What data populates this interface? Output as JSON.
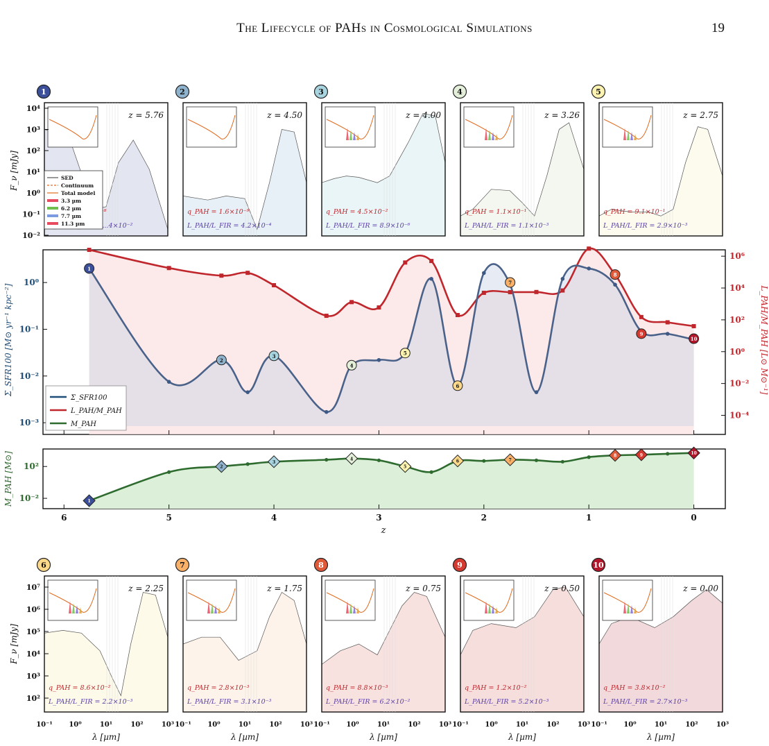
{
  "header": {
    "title": "The Lifecycle of PAHs in Cosmological Simulations",
    "page_number": "19"
  },
  "legend_sed": [
    "SED",
    "Continuum",
    "Total model",
    "3.3 µm",
    "6.2 µm",
    "7.7 µm",
    "11.3 µm"
  ],
  "legend_mid": [
    "Σ_SFR100",
    "L_PAH/M_PAH",
    "M_PAH"
  ],
  "colors": {
    "sfr": "#1f4e79",
    "lpah": "#c0272d",
    "mpah": "#2e6b2e",
    "markers": [
      "#3b4f9b",
      "#8fb3cc",
      "#a8d4e0",
      "#e4efd9",
      "#fdf3b0",
      "#fcd98a",
      "#f9b068",
      "#e05a3a",
      "#d43a2f",
      "#b3152a"
    ]
  },
  "top_panels": [
    {
      "id": "1",
      "z": "z = 5.76",
      "q": "q_PAH = ...×10⁻⁸",
      "l": "L_PAH/L_FIR = ...4×10⁻²"
    },
    {
      "id": "2",
      "z": "z = 4.50",
      "q": "q_PAH = 1.6×10⁻⁹",
      "l": "L_PAH/L_FIR = 4.2×10⁻⁴"
    },
    {
      "id": "3",
      "z": "z = 4.00",
      "q": "q_PAH = 4.5×10⁻²",
      "l": "L_PAH/L_FIR = 8.9×10⁻⁶"
    },
    {
      "id": "4",
      "z": "z = 3.26",
      "q": "q_PAH = 1.1×10⁻¹",
      "l": "L_PAH/L_FIR = 1.1×10⁻³"
    },
    {
      "id": "5",
      "z": "z = 2.75",
      "q": "q_PAH = 9.1×10⁻¹",
      "l": "L_PAH/L_FIR = 2.9×10⁻³"
    }
  ],
  "bottom_panels": [
    {
      "id": "6",
      "z": "z = 2.25",
      "q": "q_PAH = 8.6×10⁻²",
      "l": "L_PAH/L_FIR = 2.2×10⁻³"
    },
    {
      "id": "7",
      "z": "z = 1.75",
      "q": "q_PAH = 2.8×10⁻³",
      "l": "L_PAH/L_FIR = 3.1×10⁻³"
    },
    {
      "id": "8",
      "z": "z = 0.75",
      "q": "q_PAH = 8.8×10⁻³",
      "l": "L_PAH/L_FIR = 6.2×10⁻²"
    },
    {
      "id": "9",
      "z": "z = 0.50",
      "q": "q_PAH = 1.2×10⁻²",
      "l": "L_PAH/L_FIR = 5.2×10⁻³"
    },
    {
      "id": "10",
      "z": "z = 0.00",
      "q": "q_PAH = 3.8×10⁻²",
      "l": "L_PAH/L_FIR = 2.7×10⁻³"
    }
  ],
  "axes": {
    "top_ylabel": "F_ν [mJy]",
    "top_yticks": [
      "10⁴",
      "10³",
      "10²",
      "10¹",
      "10⁰",
      "10⁻¹",
      "10⁻²"
    ],
    "bot_ylabel": "F_ν [mJy]",
    "bot_yticks": [
      "10⁷",
      "10⁶",
      "10⁵",
      "10⁴",
      "10³",
      "10²"
    ],
    "bot_xticks": [
      "10⁻¹",
      "10⁰",
      "10¹",
      "10²",
      "10³"
    ],
    "bot_xlabel": "λ [µm]",
    "mid_ylabel_left": "Σ_SFR100 [M⊙ yr⁻¹ kpc⁻²]",
    "mid_ylabel_right": "L_PAH/M_PAH [L⊙ M⊙⁻¹]",
    "mid_yticks_left": [
      "10⁰",
      "10⁻¹",
      "10⁻²",
      "10⁻³"
    ],
    "mid_yticks_right": [
      "10⁶",
      "10⁴",
      "10²",
      "10⁰",
      "10⁻²",
      "10⁻⁴"
    ],
    "low_ylabel": "M_PAH [M⊙]",
    "low_yticks": [
      "10²",
      "10⁻²"
    ],
    "z_ticks": [
      "6",
      "5",
      "4",
      "3",
      "2",
      "1",
      "0"
    ],
    "z_label": "z"
  },
  "chart_data": {
    "type": "line",
    "xlabel": "z",
    "xlim": [
      6.2,
      -0.3
    ],
    "series": [
      {
        "name": "Σ_SFR100",
        "x": [
          5.76,
          5.0,
          4.5,
          4.25,
          4.0,
          3.5,
          3.26,
          3.0,
          2.75,
          2.5,
          2.25,
          2.0,
          1.75,
          1.5,
          1.25,
          1.0,
          0.75,
          0.5,
          0.25,
          0.0
        ],
        "y": [
          2.0,
          0.0075,
          0.022,
          0.0045,
          0.027,
          0.0017,
          0.017,
          0.022,
          0.031,
          1.2,
          0.0062,
          1.6,
          0.9,
          0.0045,
          1.2,
          2.0,
          0.9,
          0.09,
          0.08,
          0.06
        ]
      },
      {
        "name": "L_PAH/M_PAH",
        "x": [
          5.76,
          5.0,
          4.5,
          4.25,
          4.0,
          3.5,
          3.26,
          3.0,
          2.75,
          2.5,
          2.25,
          2.0,
          1.75,
          1.5,
          1.25,
          1.0,
          0.75,
          0.5,
          0.25,
          0.0
        ],
        "y": [
          2500000.0,
          180000.0,
          60000.0,
          90000.0,
          15000.0,
          180,
          1300,
          600,
          400000.0,
          500000.0,
          200,
          5000,
          5500,
          5600,
          7000,
          3000000.0,
          70000.0,
          150,
          70,
          40
        ]
      },
      {
        "name": "M_PAH",
        "x": [
          5.76,
          5.0,
          4.5,
          4.25,
          4.0,
          3.5,
          3.26,
          3.0,
          2.75,
          2.5,
          2.25,
          2.0,
          1.75,
          1.5,
          1.25,
          1.0,
          0.75,
          0.5,
          0.25,
          0.0
        ],
        "y": [
          0.005,
          20,
          100,
          200,
          400,
          700,
          1000,
          600,
          100,
          20,
          500,
          500,
          700,
          600,
          400,
          1500,
          2500,
          3000,
          4000,
          5000
        ]
      }
    ]
  }
}
